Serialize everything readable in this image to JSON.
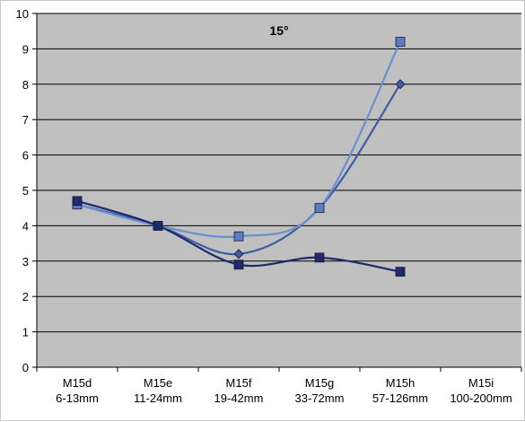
{
  "chart_data": {
    "type": "line",
    "title": "15°",
    "xlabel": "",
    "ylabel": "",
    "categories": [
      [
        "M15d",
        "6-13mm"
      ],
      [
        "M15e",
        "11-24mm"
      ],
      [
        "M15f",
        "19-42mm"
      ],
      [
        "M15g",
        "33-72mm"
      ],
      [
        "M15h",
        "57-126mm"
      ],
      [
        "M15i",
        "100-200mm"
      ]
    ],
    "ylim": [
      0,
      10
    ],
    "yticks": [
      0,
      1,
      2,
      3,
      4,
      5,
      6,
      7,
      8,
      9,
      10
    ],
    "grid": true,
    "legend": "none",
    "series": [
      {
        "values": [
          4.6,
          4.0,
          3.2,
          4.5,
          8.0,
          null
        ],
        "marker": "diamond",
        "color": "#3e5ba3",
        "markerColor": "#3e5ba3"
      },
      {
        "values": [
          4.6,
          4.0,
          3.7,
          4.5,
          9.2,
          null
        ],
        "marker": "square",
        "color": "#6b8fd2",
        "markerColor": "#5c7cc4"
      },
      {
        "values": [
          4.7,
          4.0,
          2.9,
          3.1,
          2.7,
          null
        ],
        "marker": "square",
        "color": "#1f2a6b",
        "markerColor": "#1f2a6b"
      }
    ],
    "colors": {
      "plot_background": "#c0c0c0",
      "gridline": "#000000",
      "axis": "#000000"
    }
  }
}
